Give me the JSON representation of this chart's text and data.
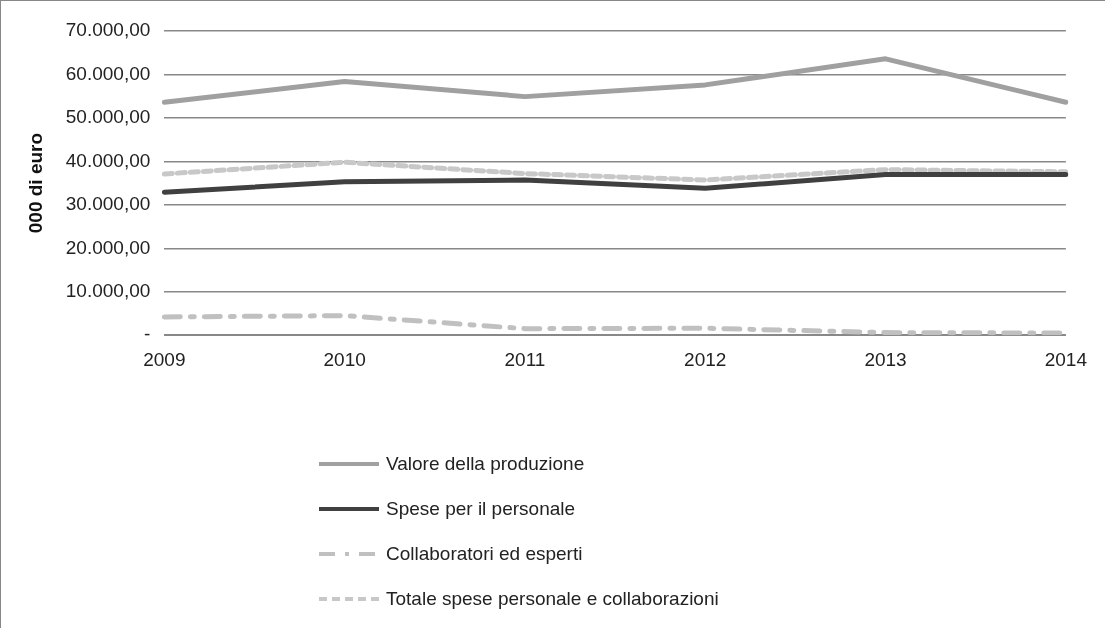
{
  "chart_data": {
    "type": "line",
    "ylabel": "000 di euro",
    "categories": [
      "2009",
      "2010",
      "2011",
      "2012",
      "2013",
      "2014"
    ],
    "series": [
      {
        "name": "Valore della produzione",
        "color": "#a0a0a0",
        "line_style": "solid",
        "values": [
          53600,
          58400,
          54900,
          57600,
          63600,
          53600
        ]
      },
      {
        "name": "Spese per il personale",
        "color": "#404040",
        "line_style": "solid",
        "values": [
          32900,
          35300,
          35700,
          33800,
          37000,
          37000
        ]
      },
      {
        "name": "Collaboratori ed esperti",
        "color": "#c0c0c0",
        "line_style": "dashdot",
        "values": [
          4200,
          4500,
          1500,
          1600,
          600,
          500
        ]
      },
      {
        "name": "Totale spese personale e collaborazioni",
        "color": "#c8c8c8",
        "line_style": "dashed",
        "values": [
          37100,
          39800,
          37200,
          35700,
          38100,
          37600
        ]
      }
    ],
    "ylim": [
      0,
      70000
    ],
    "yticks": [
      {
        "value": 0,
        "label": "-"
      },
      {
        "value": 10000,
        "label": "10.000,00"
      },
      {
        "value": 20000,
        "label": "20.000,00"
      },
      {
        "value": 30000,
        "label": "30.000,00"
      },
      {
        "value": 40000,
        "label": "40.000,00"
      },
      {
        "value": 50000,
        "label": "50.000,00"
      },
      {
        "value": 60000,
        "label": "60.000,00"
      },
      {
        "value": 70000,
        "label": "70.000,00"
      }
    ],
    "grid": "y",
    "legend": "bottom",
    "marker": "none"
  }
}
